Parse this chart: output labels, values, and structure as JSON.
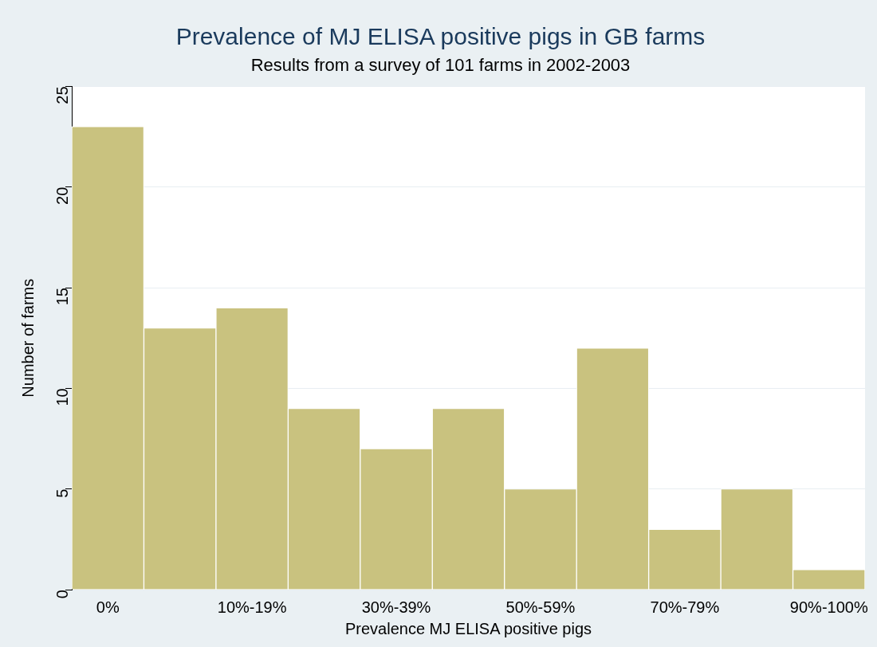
{
  "chart_data": {
    "type": "bar",
    "title": "Prevalence of MJ ELISA positive pigs in GB farms",
    "subtitle": "Results from a survey of 101 farms in 2002-2003",
    "xlabel": "Prevalence MJ ELISA positive pigs",
    "ylabel": "Number of farms",
    "categories": [
      "0%",
      null,
      "10%-19%",
      null,
      "30%-39%",
      null,
      "50%-59%",
      null,
      "70%-79%",
      null,
      "90%-100%"
    ],
    "values": [
      23,
      13,
      14,
      9,
      7,
      9,
      5,
      12,
      3,
      5,
      1
    ],
    "color": "#c9c27f",
    "ylim": [
      0,
      25
    ],
    "yticks": [
      0,
      5,
      10,
      15,
      20,
      25
    ],
    "grid": "y",
    "legend": false
  }
}
